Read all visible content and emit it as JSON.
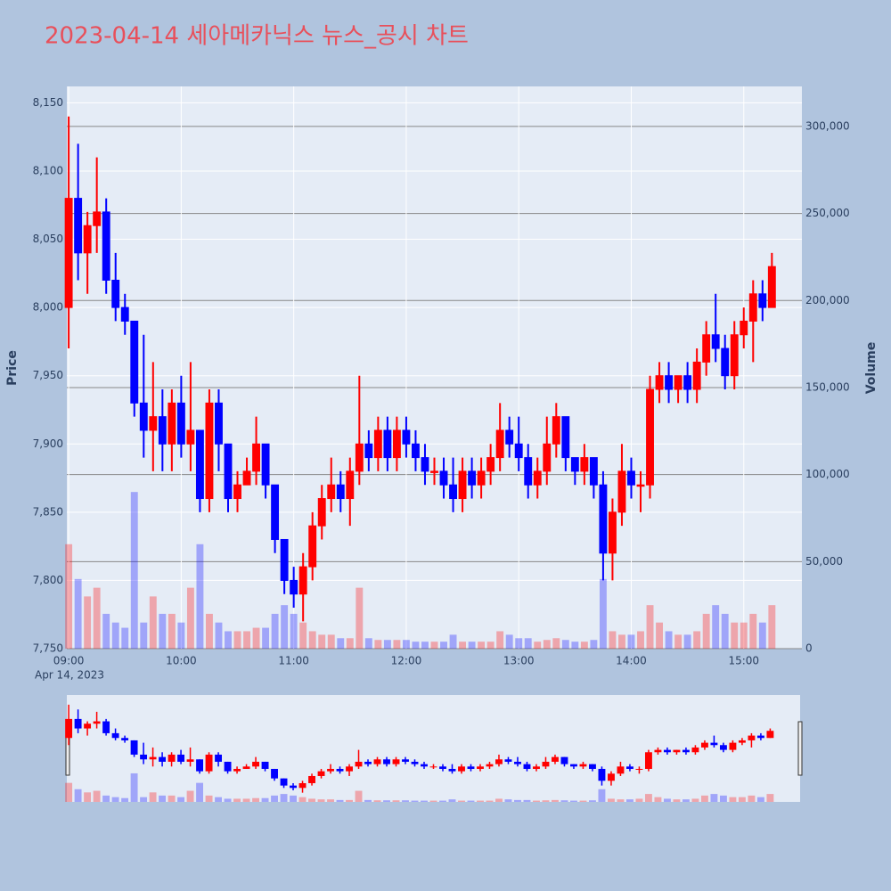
{
  "chart_data": {
    "type": "candlestick",
    "title": "2023-04-14 세아메카닉스 뉴스_공시 차트",
    "ylabel": "Price",
    "y2label": "Volume",
    "x_date_label": "Apr 14, 2023",
    "increasing_color": "#ff0000",
    "decreasing_color": "#0000ff",
    "xlim": [
      "08:59",
      "15:31"
    ],
    "xticks": [
      "09:00",
      "10:00",
      "11:00",
      "12:00",
      "13:00",
      "14:00",
      "15:00"
    ],
    "ylim": [
      7750,
      8162
    ],
    "yticks": [
      {
        "value": 7750,
        "label": "7,750"
      },
      {
        "value": 7800,
        "label": "7,800"
      },
      {
        "value": 7850,
        "label": "7,850"
      },
      {
        "value": 7900,
        "label": "7,900"
      },
      {
        "value": 7950,
        "label": "7,950"
      },
      {
        "value": 8000,
        "label": "8,000"
      },
      {
        "value": 8050,
        "label": "8,050"
      },
      {
        "value": 8100,
        "label": "8,100"
      },
      {
        "value": 8150,
        "label": "8,150"
      }
    ],
    "y2lim": [
      0,
      323000
    ],
    "y2ticks": [
      0,
      {
        "value": 50000,
        "label": "50,000"
      },
      {
        "value": 100000,
        "label": "100,000"
      },
      {
        "value": 150000,
        "label": "150,000"
      },
      {
        "value": 200000,
        "label": "200,000"
      },
      {
        "value": 250000,
        "label": "250,000"
      },
      {
        "value": 300000,
        "label": "300,000"
      }
    ],
    "x": [
      "09:00",
      "09:05",
      "09:10",
      "09:15",
      "09:20",
      "09:25",
      "09:30",
      "09:35",
      "09:40",
      "09:45",
      "09:50",
      "09:55",
      "10:00",
      "10:05",
      "10:10",
      "10:15",
      "10:20",
      "10:25",
      "10:30",
      "10:35",
      "10:40",
      "10:45",
      "10:50",
      "10:55",
      "11:00",
      "11:05",
      "11:10",
      "11:15",
      "11:20",
      "11:25",
      "11:30",
      "11:35",
      "11:40",
      "11:45",
      "11:50",
      "11:55",
      "12:00",
      "12:05",
      "12:10",
      "12:15",
      "12:20",
      "12:25",
      "12:30",
      "12:35",
      "12:40",
      "12:45",
      "12:50",
      "12:55",
      "13:00",
      "13:05",
      "13:10",
      "13:15",
      "13:20",
      "13:25",
      "13:30",
      "13:35",
      "13:40",
      "13:45",
      "13:50",
      "13:55",
      "14:00",
      "14:05",
      "14:10",
      "14:15",
      "14:20",
      "14:25",
      "14:30",
      "14:35",
      "14:40",
      "14:45",
      "14:50",
      "14:55",
      "15:00",
      "15:05",
      "15:10",
      "15:15"
    ],
    "open": [
      8000,
      8080,
      8040,
      8060,
      8070,
      8020,
      8000,
      7990,
      7930,
      7910,
      7920,
      7900,
      7930,
      7900,
      7910,
      7860,
      7930,
      7900,
      7860,
      7870,
      7880,
      7900,
      7870,
      7830,
      7800,
      7790,
      7810,
      7840,
      7860,
      7870,
      7860,
      7880,
      7900,
      7890,
      7910,
      7890,
      7910,
      7900,
      7890,
      7880,
      7880,
      7870,
      7860,
      7880,
      7870,
      7880,
      7890,
      7910,
      7900,
      7890,
      7870,
      7880,
      7900,
      7920,
      7890,
      7880,
      7890,
      7870,
      7820,
      7850,
      7880,
      7870,
      7870,
      7940,
      7950,
      7940,
      7950,
      7940,
      7960,
      7980,
      7970,
      7950,
      7980,
      7990,
      8010,
      8000
    ],
    "high": [
      8140,
      8120,
      8070,
      8110,
      8080,
      8040,
      8010,
      7990,
      7980,
      7960,
      7940,
      7940,
      7950,
      7960,
      7910,
      7940,
      7940,
      7900,
      7880,
      7890,
      7920,
      7900,
      7870,
      7830,
      7810,
      7820,
      7850,
      7870,
      7890,
      7880,
      7890,
      7950,
      7910,
      7920,
      7920,
      7920,
      7920,
      7910,
      7900,
      7890,
      7890,
      7890,
      7890,
      7890,
      7890,
      7900,
      7930,
      7920,
      7920,
      7900,
      7890,
      7920,
      7930,
      7920,
      7890,
      7900,
      7890,
      7880,
      7860,
      7900,
      7890,
      7880,
      7950,
      7960,
      7960,
      7950,
      7960,
      7970,
      7990,
      8010,
      7980,
      7990,
      8000,
      8020,
      8020,
      8040
    ],
    "low": [
      7970,
      8020,
      8010,
      8040,
      8010,
      7990,
      7980,
      7920,
      7890,
      7880,
      7880,
      7880,
      7890,
      7880,
      7850,
      7850,
      7880,
      7850,
      7850,
      7870,
      7870,
      7860,
      7820,
      7790,
      7780,
      7770,
      7800,
      7830,
      7850,
      7850,
      7840,
      7870,
      7880,
      7880,
      7880,
      7880,
      7890,
      7880,
      7870,
      7870,
      7860,
      7850,
      7850,
      7860,
      7860,
      7870,
      7880,
      7890,
      7880,
      7860,
      7860,
      7870,
      7890,
      7880,
      7870,
      7870,
      7860,
      7800,
      7800,
      7840,
      7860,
      7850,
      7860,
      7930,
      7930,
      7930,
      7930,
      7930,
      7950,
      7960,
      7940,
      7940,
      7970,
      7960,
      7990,
      8000
    ],
    "close": [
      8080,
      8040,
      8060,
      8070,
      8020,
      8000,
      7990,
      7930,
      7910,
      7920,
      7900,
      7930,
      7900,
      7910,
      7860,
      7930,
      7900,
      7860,
      7870,
      7880,
      7900,
      7870,
      7830,
      7800,
      7790,
      7810,
      7840,
      7860,
      7870,
      7860,
      7880,
      7900,
      7890,
      7910,
      7890,
      7910,
      7900,
      7890,
      7880,
      7880,
      7870,
      7860,
      7880,
      7870,
      7880,
      7890,
      7910,
      7900,
      7890,
      7870,
      7880,
      7900,
      7920,
      7890,
      7880,
      7890,
      7870,
      7820,
      7850,
      7880,
      7870,
      7870,
      7940,
      7950,
      7940,
      7950,
      7940,
      7960,
      7980,
      7970,
      7950,
      7980,
      7990,
      8010,
      8000,
      8030
    ],
    "volume": [
      60000,
      40000,
      30000,
      35000,
      20000,
      15000,
      12000,
      90000,
      15000,
      30000,
      20000,
      20000,
      15000,
      35000,
      60000,
      20000,
      15000,
      10000,
      10000,
      10000,
      12000,
      12000,
      20000,
      25000,
      20000,
      15000,
      10000,
      8000,
      8000,
      6000,
      6000,
      35000,
      6000,
      5000,
      5000,
      5000,
      5000,
      4000,
      4000,
      4000,
      4000,
      8000,
      4000,
      4000,
      4000,
      4000,
      10000,
      8000,
      6000,
      6000,
      4000,
      5000,
      6000,
      5000,
      4000,
      4000,
      5000,
      40000,
      10000,
      8000,
      8000,
      10000,
      25000,
      15000,
      10000,
      8000,
      8000,
      10000,
      20000,
      25000,
      20000,
      15000,
      15000,
      20000,
      15000,
      25000
    ]
  }
}
